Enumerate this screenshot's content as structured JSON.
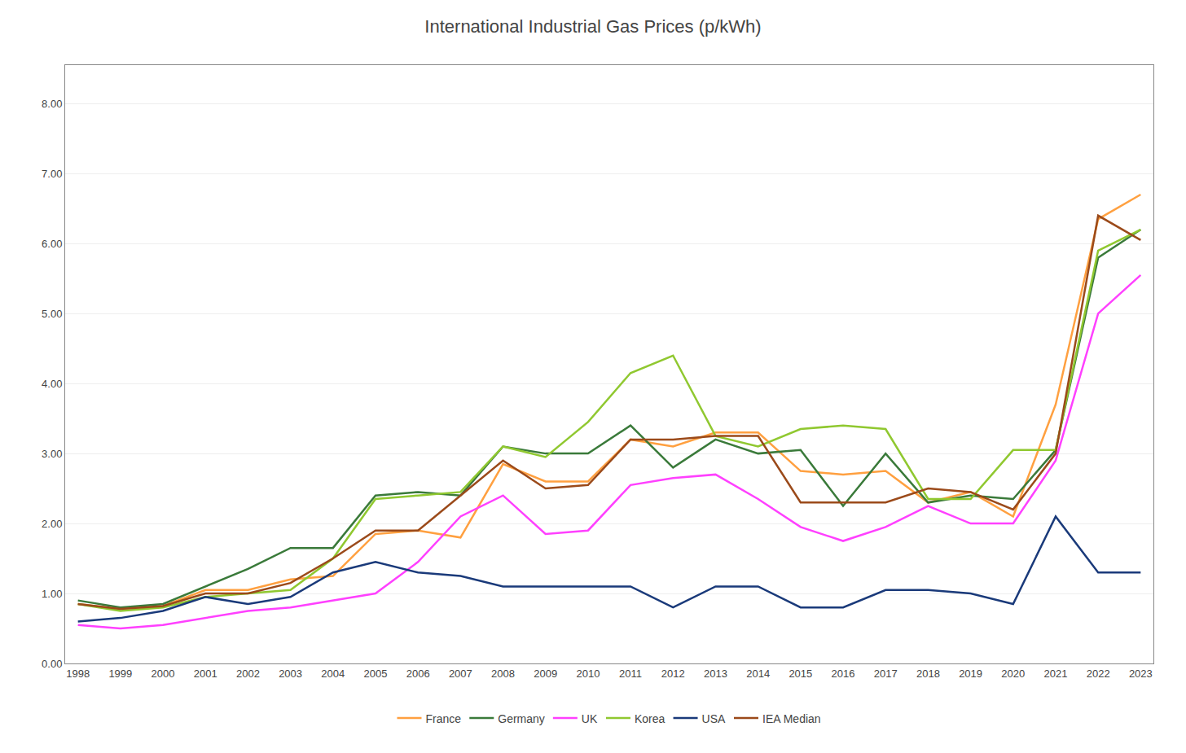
{
  "chart_data": {
    "type": "line",
    "title": "International Industrial Gas Prices (p/kWh)",
    "x": [
      1998,
      1999,
      2000,
      2001,
      2002,
      2003,
      2004,
      2005,
      2006,
      2007,
      2008,
      2009,
      2010,
      2011,
      2012,
      2013,
      2014,
      2015,
      2016,
      2017,
      2018,
      2019,
      2020,
      2021,
      2022,
      2023
    ],
    "series": [
      {
        "name": "France",
        "color": "#FFA040",
        "values": [
          0.85,
          0.78,
          0.82,
          1.05,
          1.05,
          1.2,
          1.25,
          1.85,
          1.9,
          1.8,
          2.85,
          2.6,
          2.6,
          3.2,
          3.1,
          3.3,
          3.3,
          2.75,
          2.7,
          2.75,
          2.3,
          2.45,
          2.1,
          3.7,
          6.35,
          6.7
        ]
      },
      {
        "name": "Germany",
        "color": "#3A7A3A",
        "values": [
          0.9,
          0.8,
          0.85,
          1.1,
          1.35,
          1.65,
          1.65,
          2.4,
          2.45,
          2.4,
          3.1,
          3.0,
          3.0,
          3.4,
          2.8,
          3.2,
          3.0,
          3.05,
          2.25,
          3.0,
          2.3,
          2.4,
          2.35,
          3.05,
          5.8,
          6.2
        ]
      },
      {
        "name": "UK",
        "color": "#FF40FF",
        "values": [
          0.55,
          0.5,
          0.55,
          0.65,
          0.75,
          0.8,
          0.9,
          1.0,
          1.45,
          2.1,
          2.4,
          1.85,
          1.9,
          2.55,
          2.65,
          2.7,
          2.35,
          1.95,
          1.75,
          1.95,
          2.25,
          2.0,
          2.0,
          2.9,
          5.0,
          5.55
        ]
      },
      {
        "name": "Korea",
        "color": "#90C830",
        "values": [
          0.85,
          0.75,
          0.8,
          0.95,
          1.0,
          1.05,
          1.5,
          2.35,
          2.4,
          2.45,
          3.1,
          2.95,
          3.45,
          4.15,
          4.4,
          3.25,
          3.1,
          3.35,
          3.4,
          3.35,
          2.35,
          2.35,
          3.05,
          3.05,
          5.9,
          6.2
        ]
      },
      {
        "name": "USA",
        "color": "#1A3A7A",
        "values": [
          0.6,
          0.65,
          0.75,
          0.95,
          0.85,
          0.95,
          1.3,
          1.45,
          1.3,
          1.25,
          1.1,
          1.1,
          1.1,
          1.1,
          0.8,
          1.1,
          1.1,
          0.8,
          0.8,
          1.05,
          1.05,
          1.0,
          0.85,
          2.1,
          1.3,
          1.3
        ]
      },
      {
        "name": "IEA Median",
        "color": "#9B4A1A",
        "values": [
          0.85,
          0.78,
          0.82,
          1.0,
          1.0,
          1.15,
          1.5,
          1.9,
          1.9,
          2.4,
          2.9,
          2.5,
          2.55,
          3.2,
          3.2,
          3.25,
          3.25,
          2.3,
          2.3,
          2.3,
          2.5,
          2.45,
          2.2,
          3.0,
          6.4,
          6.05
        ]
      }
    ],
    "xlim": [
      1997.7,
      2023.3
    ],
    "xticks": [
      1998,
      1999,
      2000,
      2001,
      2002,
      2003,
      2004,
      2005,
      2006,
      2007,
      2008,
      2009,
      2010,
      2011,
      2012,
      2013,
      2014,
      2015,
      2016,
      2017,
      2018,
      2019,
      2020,
      2021,
      2022,
      2023
    ],
    "ylim": [
      0.0,
      8.55
    ],
    "yticks": [
      {
        "value": 0.0,
        "label": "0.00"
      },
      {
        "value": 1.0,
        "label": "1.00"
      },
      {
        "value": 2.0,
        "label": "2.00"
      },
      {
        "value": 3.0,
        "label": "3.00"
      },
      {
        "value": 4.0,
        "label": "4.00"
      },
      {
        "value": 5.0,
        "label": "5.00"
      },
      {
        "value": 6.0,
        "label": "6.00"
      },
      {
        "value": 7.0,
        "label": "7.00"
      },
      {
        "value": 8.0,
        "label": "8.00"
      }
    ],
    "grid": true,
    "legend": "bottom"
  }
}
